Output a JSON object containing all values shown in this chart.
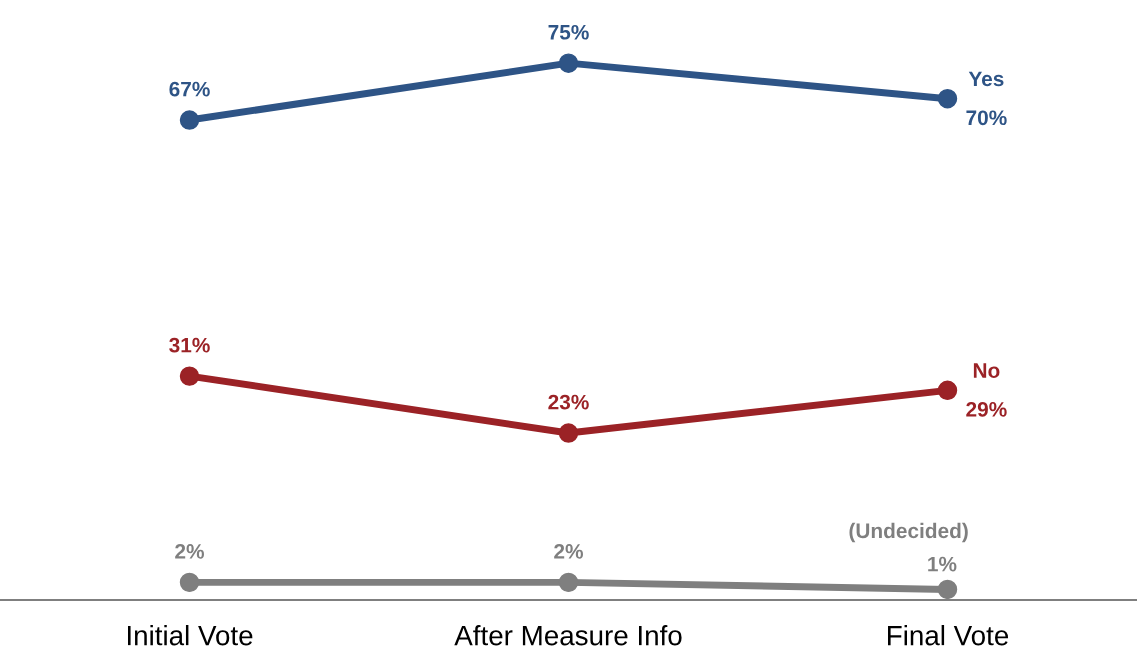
{
  "chart_data": {
    "type": "line",
    "categories": [
      "Initial Vote",
      "After Measure Info",
      "Final Vote"
    ],
    "series": [
      {
        "name": "Yes",
        "color": "#2e5486",
        "values": [
          67,
          75,
          70
        ],
        "value_labels": [
          "67%",
          "75%",
          "70%"
        ]
      },
      {
        "name": "No",
        "color": "#9b2226",
        "values": [
          31,
          23,
          29
        ],
        "value_labels": [
          "31%",
          "23%",
          "29%"
        ]
      },
      {
        "name": "(Undecided)",
        "color": "#7f7f7f",
        "values": [
          2,
          2,
          1
        ],
        "value_labels": [
          "2%",
          "2%",
          "1%"
        ]
      }
    ],
    "tick_labels": "x",
    "grid": false,
    "legend": false,
    "marker": "circle",
    "line_style": "solid"
  }
}
